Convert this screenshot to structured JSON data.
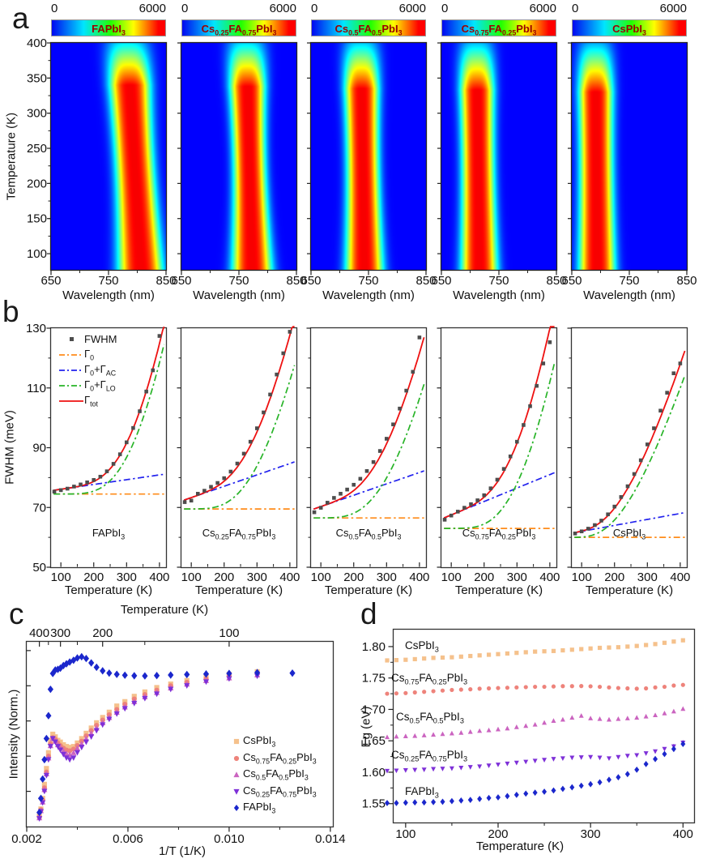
{
  "figure": {
    "panel_labels": [
      "a",
      "b",
      "c",
      "d"
    ],
    "compositions": [
      "FAPbI_{3}",
      "Cs_{0.25}FA_{0.75}PbI_{3}",
      "Cs_{0.5}FA_{0.5}PbI_{3}",
      "Cs_{0.75}FA_{0.25}PbI_{3}",
      "CsPbI_{3}"
    ]
  },
  "chart_data": [
    {
      "panel": "a",
      "type": "heatmap",
      "xlabel": "Wavelength (nm)",
      "ylabel": "Temperature (K)",
      "xlim": [
        650,
        850
      ],
      "ylim": [
        77,
        400
      ],
      "xticks": [
        650,
        750,
        850
      ],
      "xminor": [
        700,
        800
      ],
      "yticks": [
        100,
        150,
        200,
        250,
        300,
        350,
        400
      ],
      "colorbar": {
        "min_label": "0",
        "max_label": "6000",
        "scale_min": 0,
        "scale_max": 6000,
        "colors": [
          "#0008f0",
          "#00e5ff",
          "#22ff00",
          "#ffff00",
          "#ff0000"
        ],
        "title_color": "#9b0000"
      },
      "maps": [
        {
          "label": "FAPbI_{3}",
          "peak_nm_at_77K": 806,
          "peak_nm_at_400K": 783,
          "width_nm": 38,
          "waist": 0.15,
          "fade_start_K": 340,
          "amp_at_400K": 0.3
        },
        {
          "label": "Cs_{0.25}FA_{0.75}PbI_{3}",
          "peak_nm_at_77K": 773,
          "peak_nm_at_400K": 763,
          "width_nm": 34,
          "waist": 0.2,
          "fade_start_K": 338,
          "amp_at_400K": 0.28
        },
        {
          "label": "Cs_{0.5}FA_{0.5}PbI_{3}",
          "peak_nm_at_77K": 743,
          "peak_nm_at_400K": 737,
          "width_nm": 32,
          "waist": 0.15,
          "fade_start_K": 335,
          "amp_at_400K": 0.26
        },
        {
          "label": "Cs_{0.75}FA_{0.25}PbI_{3}",
          "peak_nm_at_77K": 716,
          "peak_nm_at_400K": 711,
          "width_nm": 31,
          "waist": 0.12,
          "fade_start_K": 333,
          "amp_at_400K": 0.24
        },
        {
          "label": "CsPbI_{3}",
          "peak_nm_at_77K": 694,
          "peak_nm_at_400K": 691,
          "width_nm": 31,
          "waist": 0.1,
          "fade_start_K": 330,
          "amp_at_400K": 0.22
        }
      ]
    },
    {
      "panel": "b",
      "type": "scatter-line",
      "xlabel": "Temperature (K)",
      "ylabel": "FWHM (meV)",
      "xlim": [
        70,
        420
      ],
      "ylim": [
        50,
        130
      ],
      "xticks": [
        100,
        200,
        300,
        400
      ],
      "xminor": [
        150,
        250,
        350
      ],
      "yticks": [
        50,
        70,
        90,
        110,
        130
      ],
      "yminor": [
        60,
        80,
        100,
        120
      ],
      "legend": [
        {
          "label": "FWHM",
          "style": "marker",
          "color": "#4d4d4d"
        },
        {
          "label": "Γ_{0}",
          "style": "dashdot",
          "color": "#ff8c1a"
        },
        {
          "label": "Γ_{0}+Γ_{AC}",
          "style": "dashdot",
          "color": "#2222ee"
        },
        {
          "label": "Γ_{0}+Γ_{LO}",
          "style": "dashdot",
          "color": "#28b428"
        },
        {
          "label": "Γ_{tot}",
          "style": "solid",
          "color": "#ee1111"
        }
      ],
      "T_points": [
        80,
        100,
        120,
        140,
        160,
        180,
        200,
        220,
        240,
        260,
        280,
        300,
        320,
        340,
        360,
        380,
        400
      ],
      "subplots": [
        {
          "label": "FAPbI_{3}",
          "gamma0_meV": 74.5,
          "ac_meV_per_K": 0.016,
          "lo_coupling_meV": 1866,
          "lo_energy_meV": 130,
          "fwhm_meV": [
            75.3,
            75.8,
            76.3,
            77.0,
            77.7,
            78.4,
            79.2,
            80.3,
            82.1,
            84.6,
            87.8,
            91.8,
            96.6,
            102.2,
            108.8,
            115.9,
            127.4
          ]
        },
        {
          "label": "Cs_{0.25}FA_{0.75}PbI_{3}",
          "gamma0_meV": 69.5,
          "ac_meV_per_K": 0.038,
          "lo_coupling_meV": 1002,
          "lo_energy_meV": 110,
          "fwhm_meV": [
            71.8,
            72.3,
            74.6,
            75.6,
            76.9,
            78.2,
            79.8,
            82.0,
            84.7,
            88.0,
            92.0,
            96.5,
            101.8,
            107.8,
            114.5,
            121.6,
            128.8
          ]
        },
        {
          "label": "Cs_{0.5}FA_{0.5}PbI_{3}",
          "gamma0_meV": 66.5,
          "ac_meV_per_K": 0.038,
          "lo_coupling_meV": 932,
          "lo_energy_meV": 110,
          "fwhm_meV": [
            68.4,
            69.9,
            71.6,
            73.2,
            74.6,
            76.0,
            77.6,
            79.6,
            82.2,
            85.2,
            88.9,
            93.0,
            97.8,
            103.1,
            109.1,
            115.4,
            126.9
          ]
        },
        {
          "label": "Cs_{0.75}FA_{0.25}PbI_{3}",
          "gamma0_meV": 63.0,
          "ac_meV_per_K": 0.045,
          "lo_coupling_meV": 1544,
          "lo_energy_meV": 120,
          "fwhm_meV": [
            65.9,
            67.3,
            68.6,
            69.9,
            71.1,
            72.4,
            74.1,
            76.4,
            79.3,
            82.9,
            87.1,
            92.0,
            97.6,
            103.9,
            110.7,
            118.2,
            125.3
          ]
        },
        {
          "label": "CsPbI_{3}",
          "gamma0_meV": 60.0,
          "ac_meV_per_K": 0.02,
          "lo_coupling_meV": 331,
          "lo_energy_meV": 70,
          "fwhm_meV": [
            61.3,
            62.0,
            62.9,
            64.1,
            65.6,
            67.7,
            70.3,
            73.5,
            77.1,
            81.2,
            85.8,
            91.1,
            96.5,
            102.4,
            108.4,
            114.9,
            118.2
          ]
        }
      ]
    },
    {
      "panel": "c",
      "type": "scatter",
      "xlabel": "1/T (1/K)",
      "ylabel": "Intensity (Norm.)",
      "top_xlabel": "Temperature (K)",
      "xlim": [
        0.002,
        0.0141
      ],
      "ylim": [
        0,
        1.05
      ],
      "xticks": [
        0.002,
        0.006,
        0.01,
        0.014
      ],
      "xminor": [
        0.004,
        0.008,
        0.012
      ],
      "top_ticks_K": [
        400,
        300,
        200,
        100
      ],
      "top_minor_K": [
        350,
        250,
        150
      ],
      "x_invT": [
        0.0025,
        0.00256,
        0.00263,
        0.0027,
        0.00278,
        0.00286,
        0.00294,
        0.00303,
        0.00313,
        0.00323,
        0.00333,
        0.00345,
        0.00357,
        0.0037,
        0.00385,
        0.004,
        0.00417,
        0.00435,
        0.00455,
        0.00476,
        0.005,
        0.00526,
        0.00556,
        0.00588,
        0.00625,
        0.00667,
        0.00714,
        0.00769,
        0.00833,
        0.00909,
        0.01,
        0.01111,
        0.0125
      ],
      "series": [
        {
          "label": "CsPbI_{3}",
          "marker": "square",
          "color": "#f5c18c",
          "y": [
            0.06,
            0.1,
            0.16,
            0.24,
            0.33,
            0.42,
            0.49,
            0.525,
            0.51,
            0.49,
            0.48,
            0.465,
            0.455,
            0.45,
            0.455,
            0.475,
            0.5,
            0.53,
            0.56,
            0.59,
            0.62,
            0.65,
            0.685,
            0.71,
            0.74,
            0.765,
            0.79,
            0.81,
            0.83,
            0.85,
            0.865,
            0.88,
            null
          ]
        },
        {
          "label": "Cs_{0.75}FA_{0.25}PbI_{3}",
          "marker": "circle",
          "color": "#ee837b",
          "y": [
            0.055,
            0.095,
            0.15,
            0.22,
            0.31,
            0.4,
            0.47,
            0.505,
            0.495,
            0.475,
            0.46,
            0.445,
            0.435,
            0.43,
            0.44,
            0.46,
            0.485,
            0.515,
            0.545,
            0.575,
            0.605,
            0.635,
            0.665,
            0.695,
            0.725,
            0.75,
            0.775,
            0.8,
            0.82,
            0.84,
            0.855,
            0.87,
            null
          ]
        },
        {
          "label": "Cs_{0.5}FA_{0.5}PbI_{3}",
          "marker": "triangle-up",
          "color": "#cb64c0",
          "y": [
            0.05,
            0.09,
            0.14,
            0.21,
            0.3,
            0.39,
            0.46,
            0.5,
            0.485,
            0.465,
            0.45,
            0.43,
            0.415,
            0.41,
            0.42,
            0.445,
            0.47,
            0.5,
            0.53,
            0.56,
            0.59,
            0.62,
            0.65,
            0.68,
            0.71,
            0.738,
            0.762,
            0.788,
            0.81,
            0.83,
            0.845,
            0.862,
            null
          ]
        },
        {
          "label": "Cs_{0.25}FA_{0.75}PbI_{3}",
          "marker": "triangle-down",
          "color": "#7e30d8",
          "y": [
            0.045,
            0.085,
            0.135,
            0.2,
            0.29,
            0.38,
            0.455,
            0.5,
            0.48,
            0.455,
            0.435,
            0.41,
            0.39,
            0.38,
            0.39,
            0.42,
            0.45,
            0.48,
            0.51,
            0.545,
            0.578,
            0.61,
            0.64,
            0.67,
            0.7,
            0.728,
            0.753,
            0.78,
            0.8,
            0.822,
            0.84,
            0.855,
            null
          ]
        },
        {
          "label": "FAPbI_{3}",
          "marker": "diamond",
          "color": "#1b27cc",
          "y": [
            0.08,
            0.16,
            0.27,
            0.38,
            0.5,
            0.63,
            0.78,
            0.87,
            0.89,
            0.893,
            0.9,
            0.915,
            0.925,
            0.935,
            0.945,
            0.958,
            0.965,
            0.955,
            0.93,
            0.905,
            0.885,
            0.872,
            0.865,
            0.86,
            0.857,
            0.856,
            0.858,
            0.861,
            0.864,
            0.867,
            0.87,
            0.875,
            0.872
          ]
        }
      ]
    },
    {
      "panel": "d",
      "type": "scatter",
      "xlabel": "Temperature (K)",
      "ylabel": "Eg (eV)",
      "xlim": [
        87,
        412
      ],
      "ylim": [
        1.52,
        1.827
      ],
      "xticks": [
        100,
        200,
        300,
        400
      ],
      "xminor": [
        150,
        250,
        350
      ],
      "yticks": [
        1.55,
        1.6,
        1.65,
        1.7,
        1.75,
        1.8
      ],
      "T": [
        80,
        90,
        100,
        110,
        120,
        130,
        140,
        150,
        160,
        170,
        180,
        190,
        200,
        210,
        220,
        230,
        240,
        250,
        260,
        270,
        280,
        290,
        300,
        310,
        320,
        330,
        340,
        350,
        360,
        370,
        380,
        390,
        400
      ],
      "series": [
        {
          "label": "CsPbI_{3}",
          "marker": "square",
          "color": "#f5c18c",
          "y": [
            1.778,
            1.7785,
            1.779,
            1.78,
            1.781,
            1.782,
            1.7825,
            1.783,
            1.784,
            1.785,
            1.786,
            1.787,
            1.788,
            1.789,
            1.79,
            1.791,
            1.792,
            1.7925,
            1.793,
            1.794,
            1.795,
            1.796,
            1.797,
            1.798,
            1.7985,
            1.799,
            1.8,
            1.801,
            1.8025,
            1.804,
            1.806,
            1.808,
            1.81
          ]
        },
        {
          "label": "Cs_{0.75}FA_{0.25}PbI_{3}",
          "marker": "circle",
          "color": "#ee837b",
          "y": [
            1.725,
            1.7255,
            1.726,
            1.727,
            1.728,
            1.729,
            1.73,
            1.731,
            1.7315,
            1.732,
            1.733,
            1.7335,
            1.734,
            1.7345,
            1.735,
            1.7355,
            1.736,
            1.736,
            1.7365,
            1.737,
            1.737,
            1.7372,
            1.7368,
            1.736,
            1.735,
            1.734,
            1.7335,
            1.733,
            1.7335,
            1.735,
            1.736,
            1.738,
            1.739
          ]
        },
        {
          "label": "Cs_{0.5}FA_{0.5}PbI_{3}",
          "marker": "triangle-up",
          "color": "#cb64c0",
          "y": [
            1.656,
            1.657,
            1.6575,
            1.658,
            1.659,
            1.66,
            1.661,
            1.662,
            1.663,
            1.6645,
            1.666,
            1.667,
            1.6685,
            1.67,
            1.672,
            1.674,
            1.676,
            1.679,
            1.682,
            1.684,
            1.687,
            1.69,
            1.686,
            1.685,
            1.684,
            1.685,
            1.686,
            1.687,
            1.689,
            1.691,
            1.694,
            1.697,
            1.701
          ]
        },
        {
          "label": "Cs_{0.25}FA_{0.75}PbI_{3}",
          "marker": "triangle-down",
          "color": "#7e30d8",
          "error_bars": {
            "last_n": 2,
            "value_eV": 0.004
          },
          "y": [
            1.602,
            1.6025,
            1.603,
            1.6035,
            1.604,
            1.605,
            1.6055,
            1.606,
            1.607,
            1.608,
            1.609,
            1.6105,
            1.612,
            1.6135,
            1.615,
            1.6165,
            1.618,
            1.6195,
            1.621,
            1.622,
            1.623,
            1.6235,
            1.624,
            1.623,
            1.622,
            1.624,
            1.626,
            1.627,
            1.63,
            1.633,
            1.637,
            1.641,
            1.647
          ]
        },
        {
          "label": "FAPbI_{3}",
          "marker": "diamond",
          "color": "#1b27cc",
          "error_bars": {
            "last_n": 2,
            "value_eV": 0.003
          },
          "y": [
            1.551,
            1.551,
            1.5515,
            1.552,
            1.552,
            1.5525,
            1.553,
            1.554,
            1.555,
            1.556,
            1.5575,
            1.559,
            1.56,
            1.562,
            1.564,
            1.566,
            1.5675,
            1.569,
            1.571,
            1.5735,
            1.576,
            1.5785,
            1.581,
            1.584,
            1.588,
            1.592,
            1.597,
            1.604,
            1.613,
            1.621,
            1.629,
            1.637,
            1.645
          ]
        }
      ]
    }
  ]
}
